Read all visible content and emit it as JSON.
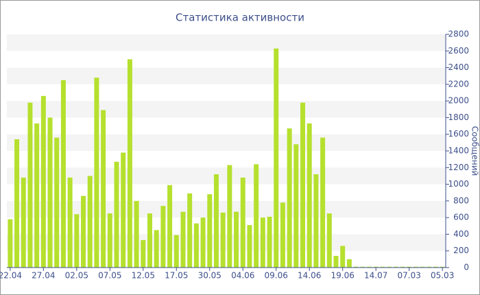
{
  "chart_data": {
    "type": "bar",
    "title": "Статистика активности",
    "y_axis_label": "Сообщений",
    "categories": [
      "22.04",
      null,
      null,
      null,
      null,
      "27.04",
      null,
      null,
      null,
      null,
      "02.05",
      null,
      null,
      null,
      null,
      "07.05",
      null,
      null,
      null,
      null,
      "12.05",
      null,
      null,
      null,
      null,
      "17.05",
      null,
      null,
      null,
      null,
      "30.05",
      null,
      null,
      null,
      null,
      "04.06",
      null,
      null,
      null,
      null,
      "09.06",
      null,
      null,
      null,
      null,
      "14.06",
      null,
      null,
      null,
      null,
      "19.06",
      null,
      null,
      null,
      null,
      "14.07",
      null,
      null,
      null,
      null,
      "07.03",
      null,
      null,
      null,
      null,
      "05.03"
    ],
    "values": [
      580,
      1540,
      1080,
      1980,
      1730,
      2060,
      1800,
      1560,
      2250,
      1080,
      640,
      860,
      1100,
      2280,
      1890,
      650,
      1270,
      1380,
      2500,
      800,
      330,
      650,
      450,
      740,
      990,
      390,
      670,
      890,
      530,
      600,
      880,
      1120,
      660,
      1230,
      670,
      1080,
      510,
      1240,
      600,
      610,
      2630,
      780,
      1670,
      1480,
      1980,
      1730,
      1120,
      1560,
      650,
      140,
      260,
      100,
      10,
      10,
      10,
      10,
      10,
      10,
      10,
      10,
      10,
      10,
      10,
      10,
      10,
      10
    ],
    "color": "#b5e02e",
    "ylim": [
      0,
      2800
    ],
    "yticks": [
      0,
      200,
      400,
      600,
      800,
      1000,
      1200,
      1400,
      1600,
      1800,
      2000,
      2200,
      2400,
      2600,
      2800
    ],
    "grid": true
  }
}
